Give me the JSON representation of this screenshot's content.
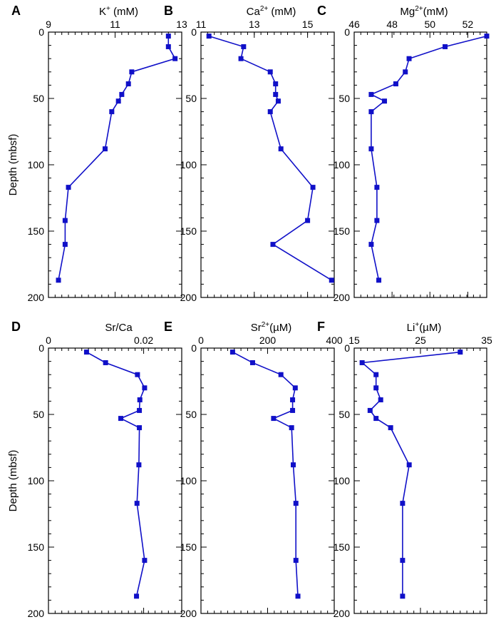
{
  "colors": {
    "series": "#1010c8",
    "axis": "#000000"
  },
  "chart_data": [
    {
      "panel": "A",
      "type": "line",
      "title": "K",
      "title_sup": "+",
      "title_rest": " (mM)",
      "ylabel": "Depth (mbsf)",
      "xlim": [
        9,
        13
      ],
      "ylim": [
        0,
        200
      ],
      "x_ticks": [
        9,
        11,
        13
      ],
      "y_ticks": [
        0,
        50,
        100,
        150,
        200
      ],
      "x": [
        12.6,
        12.6,
        12.8,
        11.5,
        11.4,
        11.2,
        11.1,
        10.9,
        10.7,
        9.6,
        9.5,
        9.5,
        9.3
      ],
      "y": [
        3,
        11,
        20,
        30,
        39,
        47,
        52,
        60,
        88,
        117,
        142,
        160,
        187
      ]
    },
    {
      "panel": "B",
      "type": "line",
      "title": "Ca",
      "title_sup": "2+",
      "title_rest": " (mM)",
      "ylabel": "",
      "xlim": [
        11,
        16
      ],
      "ylim": [
        0,
        200
      ],
      "x_ticks": [
        11,
        13,
        15
      ],
      "y_ticks": [
        0,
        50,
        100,
        150,
        200
      ],
      "x": [
        11.3,
        12.6,
        12.5,
        13.6,
        13.8,
        13.8,
        13.9,
        13.6,
        14.0,
        15.2,
        15.0,
        13.7,
        15.9
      ],
      "y": [
        3,
        11,
        20,
        30,
        39,
        47,
        52,
        60,
        88,
        117,
        142,
        160,
        187
      ]
    },
    {
      "panel": "C",
      "type": "line",
      "title": "Mg",
      "title_sup": "2+",
      "title_rest": "(mM)",
      "ylabel": "",
      "xlim": [
        46,
        53
      ],
      "ylim": [
        0,
        200
      ],
      "x_ticks": [
        46,
        48,
        50,
        52
      ],
      "y_ticks": [
        0,
        50,
        100,
        150,
        200
      ],
      "x": [
        53.0,
        50.8,
        48.9,
        48.7,
        48.2,
        46.9,
        47.6,
        46.9,
        46.9,
        47.2,
        47.2,
        46.9,
        47.3
      ],
      "y": [
        3,
        11,
        20,
        30,
        39,
        47,
        52,
        60,
        88,
        117,
        142,
        160,
        187
      ]
    },
    {
      "panel": "D",
      "type": "line",
      "title": "Sr/Ca",
      "title_sup": "",
      "title_rest": "",
      "ylabel": "Depth (mbsf)",
      "xlim": [
        0,
        0.028
      ],
      "ylim": [
        0,
        200
      ],
      "x_ticks": [
        0,
        0.02
      ],
      "x_tick_labels": [
        "0",
        "0.02"
      ],
      "y_ticks": [
        0,
        50,
        100,
        150,
        200
      ],
      "x": [
        0.008,
        0.012,
        0.0187,
        0.0202,
        0.0192,
        0.0191,
        0.0152,
        0.0191,
        0.019,
        0.0186,
        0.0202,
        0.0185
      ],
      "y": [
        3,
        11,
        20,
        30,
        39,
        47,
        53,
        60,
        88,
        117,
        160,
        187
      ]
    },
    {
      "panel": "E",
      "type": "line",
      "title": "Sr",
      "title_sup": "2+",
      "title_rest": "(µM)",
      "ylabel": "",
      "xlim": [
        0,
        400
      ],
      "ylim": [
        0,
        200
      ],
      "x_ticks": [
        0,
        200,
        400
      ],
      "y_ticks": [
        0,
        50,
        100,
        150,
        200
      ],
      "x": [
        95,
        155,
        240,
        283,
        275,
        275,
        218,
        272,
        277,
        285,
        285,
        291
      ],
      "y": [
        3,
        11,
        20,
        30,
        39,
        47,
        53,
        60,
        88,
        117,
        160,
        187
      ]
    },
    {
      "panel": "F",
      "type": "line",
      "title": "Li",
      "title_sup": "+",
      "title_rest": "(µM)",
      "ylabel": "",
      "xlim": [
        15,
        35
      ],
      "ylim": [
        0,
        200
      ],
      "x_ticks": [
        15,
        25,
        35
      ],
      "y_ticks": [
        0,
        50,
        100,
        150,
        200
      ],
      "x": [
        31.0,
        16.2,
        18.3,
        18.3,
        19.0,
        17.4,
        18.3,
        20.5,
        23.3,
        22.3,
        22.3,
        22.3
      ],
      "y": [
        3,
        11,
        20,
        30,
        39,
        47,
        53,
        60,
        88,
        117,
        160,
        187
      ]
    }
  ]
}
